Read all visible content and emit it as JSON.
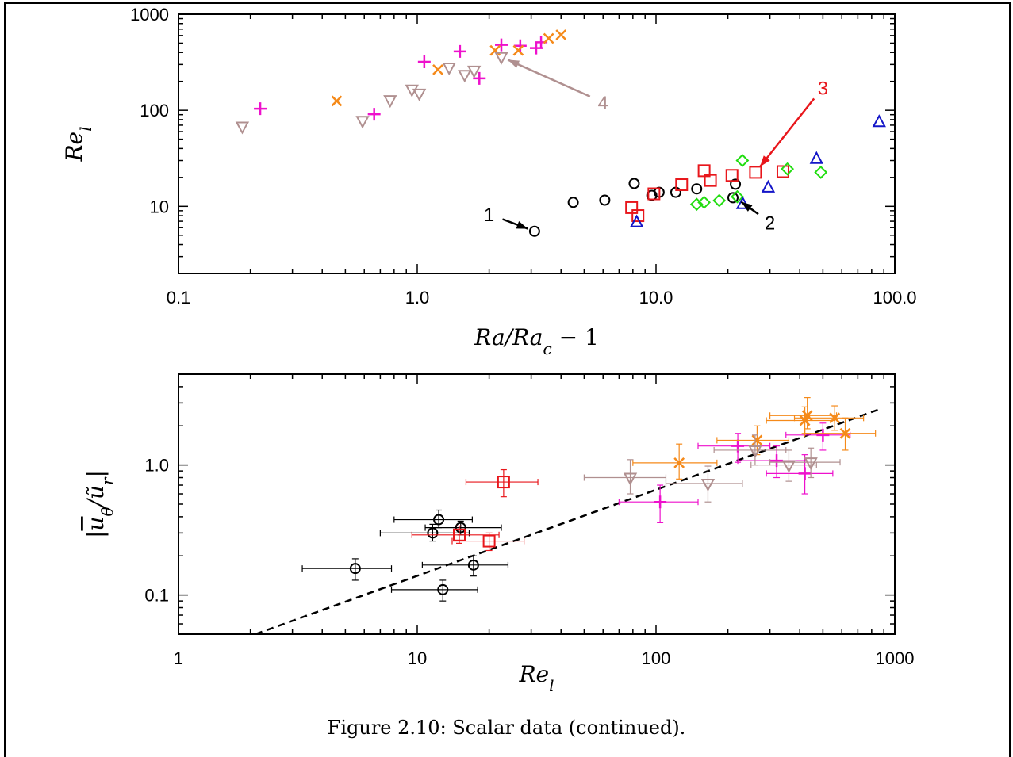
{
  "caption": "Figure 2.10:   Scalar data (continued).",
  "colors": {
    "black": "#000000",
    "red": "#e8161b",
    "green": "#22dd11",
    "blue": "#1416c8",
    "magenta": "#ee11cc",
    "orange": "#f58a1a",
    "tan": "#b09090"
  },
  "chart_data": [
    {
      "type": "scatter",
      "title": "",
      "xlabel": "Ra/Ra_c − 1",
      "ylabel": "Re_l",
      "xscale": "log",
      "yscale": "log",
      "xlim": [
        0.1,
        100
      ],
      "ylim": [
        2,
        1000
      ],
      "xticks": [
        "0.1",
        "1.0",
        "10.0",
        "100.0"
      ],
      "yticks": [
        "10",
        "100",
        "1000"
      ],
      "grid": false,
      "series": [
        {
          "marker": "circle",
          "color": "black",
          "x": [
            3.1,
            4.5,
            6.1,
            8.1,
            9.6,
            10.3,
            12.1,
            14.8,
            21.0,
            21.5
          ],
          "y": [
            5.5,
            11,
            11.6,
            17.3,
            13,
            14,
            14,
            15.2,
            12.3,
            17
          ]
        },
        {
          "marker": "square",
          "color": "red",
          "x": [
            7.9,
            8.4,
            9.8,
            12.8,
            15.9,
            16.9,
            20.8,
            26.1,
            34.0
          ],
          "y": [
            9.7,
            8,
            13.5,
            16.8,
            23.5,
            18.6,
            21,
            22.6,
            23
          ]
        },
        {
          "marker": "diamond",
          "color": "green",
          "x": [
            14.8,
            15.9,
            18.4,
            21.9,
            23.0,
            35.5,
            49.0
          ],
          "y": [
            10.5,
            11,
            11.5,
            12.6,
            30,
            24.5,
            22.6
          ]
        },
        {
          "marker": "triangle-up",
          "color": "blue",
          "x": [
            8.3,
            23.1,
            29.5,
            47.0,
            86.0
          ],
          "y": [
            6.8,
            10.5,
            15.6,
            31,
            75
          ]
        },
        {
          "marker": "plus",
          "color": "magenta",
          "x": [
            0.22,
            0.66,
            1.07,
            1.51,
            1.82,
            2.25,
            2.7,
            3.15,
            3.3
          ],
          "y": [
            104,
            91,
            320,
            410,
            215,
            480,
            470,
            445,
            510
          ]
        },
        {
          "marker": "cross",
          "color": "orange",
          "x": [
            0.46,
            1.22,
            2.12,
            2.65,
            3.55,
            4.0
          ],
          "y": [
            125,
            265,
            420,
            420,
            560,
            610
          ]
        },
        {
          "marker": "triangle-down",
          "color": "tan",
          "x": [
            0.185,
            0.59,
            0.77,
            0.95,
            1.02,
            1.36,
            1.58,
            1.73,
            2.25
          ],
          "y": [
            68,
            78,
            128,
            165,
            150,
            280,
            235,
            260,
            360
          ]
        }
      ],
      "annotations": [
        {
          "label": "1",
          "color": "black",
          "text_at": [
            2.0,
            8.3
          ],
          "arrow_to": [
            3.1,
            5.5
          ]
        },
        {
          "label": "2",
          "color": "black",
          "text_at": [
            30.0,
            6.8
          ],
          "arrow_to": [
            21.5,
            12.3
          ]
        },
        {
          "label": "3",
          "color": "red",
          "text_at": [
            50.0,
            173
          ],
          "arrow_to": [
            26.1,
            22.6
          ]
        },
        {
          "label": "4",
          "color": "tan",
          "text_at": [
            6.0,
            121
          ],
          "arrow_to": [
            2.25,
            360
          ]
        }
      ]
    },
    {
      "type": "scatter",
      "title": "",
      "xlabel": "Re_l",
      "ylabel": "|ū_θ / ũ_r|",
      "xscale": "log",
      "yscale": "log",
      "xlim": [
        1,
        1000
      ],
      "ylim": [
        0.05,
        5.0
      ],
      "xticks": [
        "1",
        "10",
        "100",
        "1000"
      ],
      "yticks": [
        "0.1",
        "1.0"
      ],
      "grid": false,
      "fit_line": {
        "style": "dashed",
        "color": "black",
        "x": [
          2.1,
          870
        ],
        "y": [
          0.05,
          2.7
        ]
      },
      "series": [
        {
          "marker": "circle",
          "color": "black",
          "points": [
            {
              "x": 5.5,
              "y": 0.16,
              "xerr": [
                3.3,
                7.8
              ],
              "yerr": [
                0.13,
                0.19
              ]
            },
            {
              "x": 11.6,
              "y": 0.3,
              "xerr": [
                7.0,
                16.5
              ],
              "yerr": [
                0.26,
                0.35
              ]
            },
            {
              "x": 12.3,
              "y": 0.38,
              "xerr": [
                8.0,
                17.0
              ],
              "yerr": [
                0.33,
                0.45
              ]
            },
            {
              "x": 12.8,
              "y": 0.11,
              "xerr": [
                7.8,
                17.9
              ],
              "yerr": [
                0.09,
                0.13
              ]
            },
            {
              "x": 15.2,
              "y": 0.33,
              "xerr": [
                10.8,
                22.5
              ],
              "yerr": [
                0.29,
                0.37
              ]
            },
            {
              "x": 17.2,
              "y": 0.17,
              "xerr": [
                10.5,
                24.0
              ],
              "yerr": [
                0.14,
                0.2
              ]
            }
          ]
        },
        {
          "marker": "square",
          "color": "red",
          "points": [
            {
              "x": 15.0,
              "y": 0.29,
              "xerr": [
                9.5,
                22.0
              ],
              "yerr": [
                0.25,
                0.34
              ]
            },
            {
              "x": 20.0,
              "y": 0.26,
              "xerr": [
                14.0,
                28.0
              ],
              "yerr": [
                0.22,
                0.3
              ]
            },
            {
              "x": 23.0,
              "y": 0.74,
              "xerr": [
                16.0,
                32.0
              ],
              "yerr": [
                0.57,
                0.92
              ]
            }
          ]
        },
        {
          "marker": "plus",
          "color": "magenta",
          "points": [
            {
              "x": 104,
              "y": 0.52,
              "xerr": [
                70,
                150
              ],
              "yerr": [
                0.36,
                0.7
              ]
            },
            {
              "x": 220,
              "y": 1.4,
              "xerr": [
                150,
                300
              ],
              "yerr": [
                1.05,
                1.75
              ]
            },
            {
              "x": 320,
              "y": 1.08,
              "xerr": [
                220,
                420
              ],
              "yerr": [
                0.8,
                1.4
              ]
            },
            {
              "x": 420,
              "y": 0.86,
              "xerr": [
                290,
                550
              ],
              "yerr": [
                0.6,
                1.2
              ]
            },
            {
              "x": 500,
              "y": 1.7,
              "xerr": [
                350,
                650
              ],
              "yerr": [
                1.3,
                2.1
              ]
            }
          ]
        },
        {
          "marker": "cross",
          "color": "orange",
          "points": [
            {
              "x": 125,
              "y": 1.04,
              "xerr": [
                80,
                180
              ],
              "yerr": [
                0.78,
                1.45
              ]
            },
            {
              "x": 265,
              "y": 1.55,
              "xerr": [
                180,
                360
              ],
              "yerr": [
                1.2,
                2.0
              ]
            },
            {
              "x": 420,
              "y": 2.2,
              "xerr": [
                290,
                560
              ],
              "yerr": [
                1.75,
                2.8
              ]
            },
            {
              "x": 430,
              "y": 2.4,
              "xerr": [
                300,
                570
              ],
              "yerr": [
                1.9,
                3.3
              ]
            },
            {
              "x": 560,
              "y": 2.3,
              "xerr": [
                380,
                740
              ],
              "yerr": [
                1.85,
                2.85
              ]
            },
            {
              "x": 620,
              "y": 1.75,
              "xerr": [
                420,
                830
              ],
              "yerr": [
                1.3,
                2.3
              ]
            }
          ]
        },
        {
          "marker": "triangle-down",
          "color": "tan",
          "points": [
            {
              "x": 78,
              "y": 0.8,
              "xerr": [
                50,
                110
              ],
              "yerr": [
                0.6,
                1.1
              ]
            },
            {
              "x": 165,
              "y": 0.72,
              "xerr": [
                110,
                230
              ],
              "yerr": [
                0.52,
                0.98
              ]
            },
            {
              "x": 260,
              "y": 1.3,
              "xerr": [
                175,
                350
              ],
              "yerr": [
                1.0,
                1.7
              ]
            },
            {
              "x": 360,
              "y": 1.0,
              "xerr": [
                250,
                470
              ],
              "yerr": [
                0.75,
                1.3
              ]
            },
            {
              "x": 445,
              "y": 1.05,
              "xerr": [
                300,
                590
              ],
              "yerr": [
                0.8,
                1.35
              ]
            }
          ]
        }
      ]
    }
  ]
}
